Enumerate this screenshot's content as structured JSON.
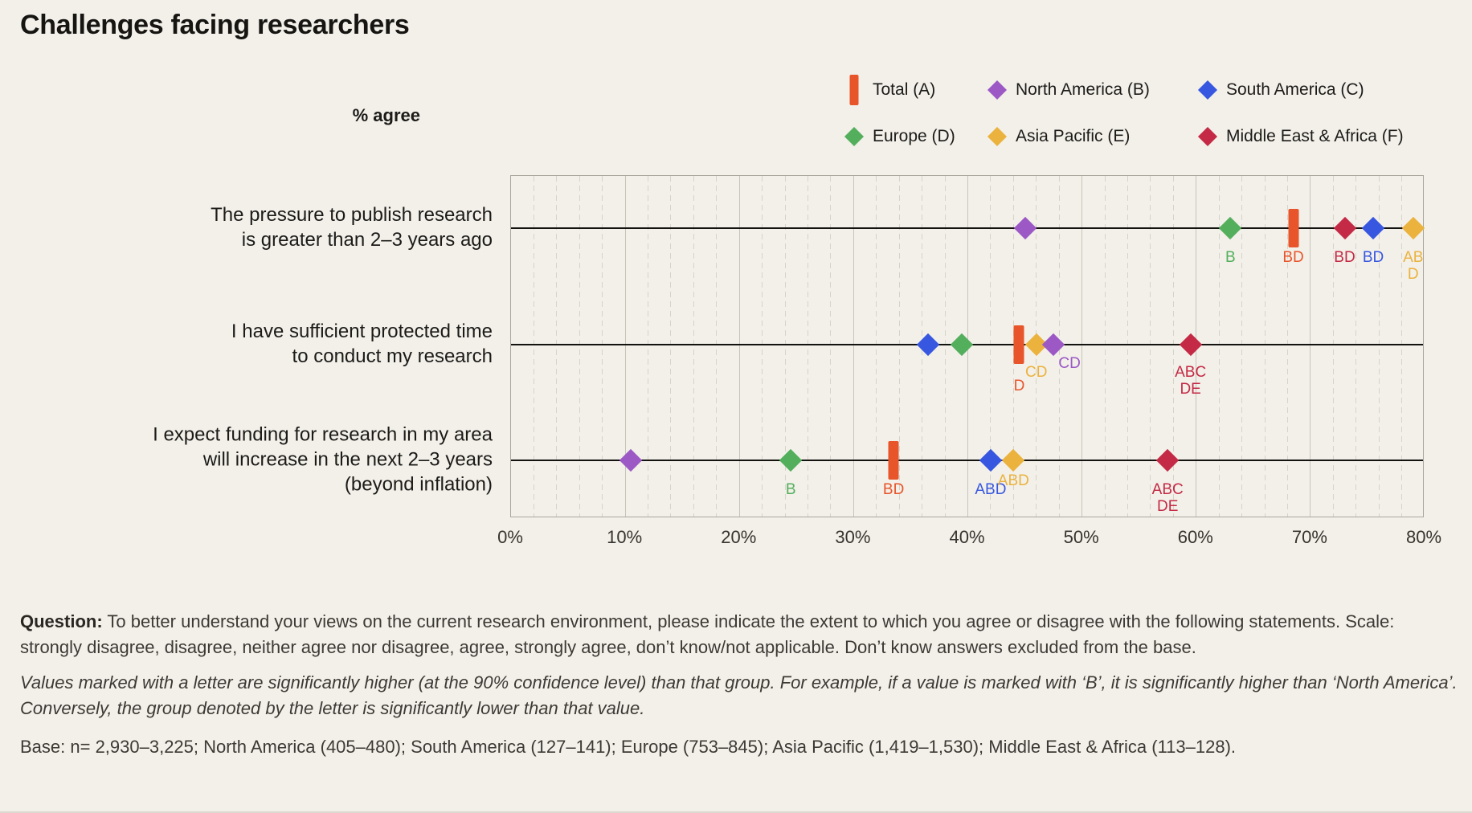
{
  "title": "Challenges facing researchers",
  "axis_note": "% agree",
  "colors": {
    "background": "#f2f0e9",
    "row_line": "#151310",
    "grid_major": "#c7c4bb",
    "grid_minor": "#d6d3ca"
  },
  "series": [
    {
      "id": "A",
      "label": "Total (A)",
      "color": "#e8552b",
      "marker": "bar"
    },
    {
      "id": "B",
      "label": "North America (B)",
      "color": "#9c58c5",
      "marker": "diamond"
    },
    {
      "id": "C",
      "label": "South America (C)",
      "color": "#3857e0",
      "marker": "diamond"
    },
    {
      "id": "D",
      "label": "Europe (D)",
      "color": "#54af5d",
      "marker": "diamond"
    },
    {
      "id": "E",
      "label": "Asia Pacific (E)",
      "color": "#ebb23e",
      "marker": "diamond"
    },
    {
      "id": "F",
      "label": "Middle East & Africa (F)",
      "color": "#c42a45",
      "marker": "diamond"
    }
  ],
  "chart_data": {
    "type": "scatter",
    "subtype": "dot-plot",
    "unit": "% agree",
    "x_axis": {
      "min": 0,
      "max": 80,
      "major_step": 10,
      "minor_step": 2,
      "tick_labels": [
        "0%",
        "10%",
        "20%",
        "30%",
        "40%",
        "50%",
        "60%",
        "70%",
        "80%"
      ]
    },
    "grid": true,
    "legend_position": "top-right",
    "rows": [
      {
        "label_lines": [
          "The pressure to publish research",
          "is greater than 2–3 years ago"
        ],
        "points": [
          {
            "series": "B",
            "value": 45
          },
          {
            "series": "D",
            "value": 63,
            "sig": [
              "B"
            ]
          },
          {
            "series": "A",
            "value": 68.5,
            "sig": [
              "BD"
            ]
          },
          {
            "series": "F",
            "value": 73,
            "sig": [
              "BD"
            ]
          },
          {
            "series": "C",
            "value": 75.5,
            "sig": [
              "BD"
            ]
          },
          {
            "series": "E",
            "value": 79,
            "sig": [
              "AB",
              "D"
            ]
          }
        ]
      },
      {
        "label_lines": [
          "I have sufficient protected time",
          "to conduct my research"
        ],
        "points": [
          {
            "series": "C",
            "value": 36.5
          },
          {
            "series": "D",
            "value": 39.5
          },
          {
            "series": "A",
            "value": 44.5,
            "sig": [
              "D"
            ],
            "dy": 41
          },
          {
            "series": "E",
            "value": 46,
            "sig": [
              "CD"
            ],
            "dy": 24
          },
          {
            "series": "B",
            "value": 47.5,
            "sig": [
              "CD"
            ],
            "dy": 13,
            "dx": 20
          },
          {
            "series": "F",
            "value": 59.5,
            "sig": [
              "ABC",
              "DE"
            ],
            "dy": 24
          }
        ]
      },
      {
        "label_lines": [
          "I expect funding for research in my area",
          "will increase in the next 2–3 years",
          "(beyond inflation)"
        ],
        "points": [
          {
            "series": "B",
            "value": 10.5
          },
          {
            "series": "D",
            "value": 24.5,
            "sig": [
              "B"
            ]
          },
          {
            "series": "A",
            "value": 33.5,
            "sig": [
              "BD"
            ]
          },
          {
            "series": "C",
            "value": 42,
            "sig": [
              "ABD"
            ]
          },
          {
            "series": "E",
            "value": 44,
            "sig": [
              "ABD"
            ],
            "dy": 15
          },
          {
            "series": "F",
            "value": 57.5,
            "sig": [
              "ABC",
              "DE"
            ]
          }
        ]
      }
    ]
  },
  "footer": {
    "question_bold": "Question:",
    "question_rest": " To better understand your views on the current research environment, please indicate the extent to which you agree or disagree with the following statements. Scale: strongly disagree, disagree, neither agree nor disagree, agree, strongly agree, don’t know/not applicable. Don’t know answers excluded from the base.",
    "significance_note": "Values marked with a letter are significantly higher (at the 90% confidence level) than that group. For example, if a value is marked with ‘B’, it is significantly higher than ‘North America’. Conversely, the group denoted by the letter is significantly lower than that value.",
    "base_note": "Base: n= 2,930–3,225; North America (405–480); South America (127–141); Europe (753–845); Asia Pacific (1,419–1,530); Middle East & Africa (113–128)."
  }
}
